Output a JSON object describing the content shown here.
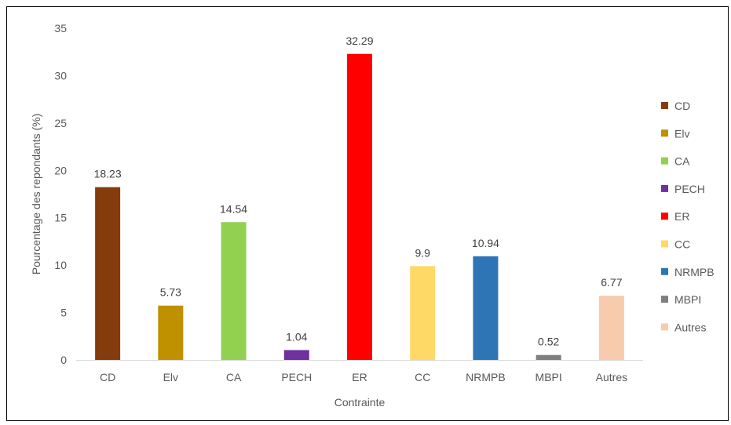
{
  "chart_data": {
    "type": "bar",
    "title": "",
    "xlabel": "Contrainte",
    "ylabel": "Pourcentage des repondants (%)",
    "ylim": [
      0,
      35
    ],
    "yticks": [
      0,
      5,
      10,
      15,
      20,
      25,
      30,
      35
    ],
    "categories": [
      "CD",
      "Elv",
      "CA",
      "PECH",
      "ER",
      "CC",
      "NRMPB",
      "MBPI",
      "Autres"
    ],
    "values": [
      18.23,
      5.73,
      14.54,
      1.04,
      32.29,
      9.9,
      10.94,
      0.52,
      6.77
    ],
    "colors": [
      "#843C0C",
      "#BF9000",
      "#92D050",
      "#7030A0",
      "#FF0000",
      "#FFD966",
      "#2E75B6",
      "#7F7F7F",
      "#F8CBAD"
    ],
    "grid": false,
    "legend": {
      "placement": "right",
      "entries": [
        "CD",
        "Elv",
        "CA",
        "PECH",
        "ER",
        "CC",
        "NRMPB",
        "MBPI",
        "Autres"
      ]
    }
  }
}
